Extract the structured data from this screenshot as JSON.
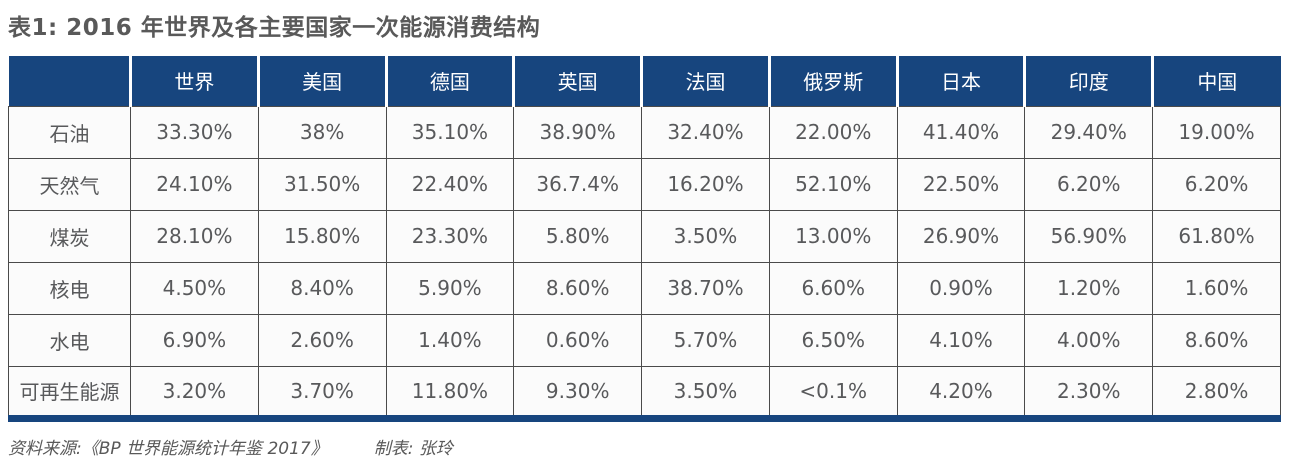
{
  "title": "表1: 2016 年世界及各主要国家一次能源消费结构",
  "table": {
    "columns": [
      "",
      "世界",
      "美国",
      "德国",
      "英国",
      "法国",
      "俄罗斯",
      "日本",
      "印度",
      "中国"
    ],
    "rows": [
      {
        "label": "石油",
        "values": [
          "33.30%",
          "38%",
          "35.10%",
          "38.90%",
          "32.40%",
          "22.00%",
          "41.40%",
          "29.40%",
          "19.00%"
        ]
      },
      {
        "label": "天然气",
        "values": [
          "24.10%",
          "31.50%",
          "22.40%",
          "36.7.4%",
          "16.20%",
          "52.10%",
          "22.50%",
          "6.20%",
          "6.20%"
        ]
      },
      {
        "label": "煤炭",
        "values": [
          "28.10%",
          "15.80%",
          "23.30%",
          "5.80%",
          "3.50%",
          "13.00%",
          "26.90%",
          "56.90%",
          "61.80%"
        ]
      },
      {
        "label": "核电",
        "values": [
          "4.50%",
          "8.40%",
          "5.90%",
          "8.60%",
          "38.70%",
          "6.60%",
          "0.90%",
          "1.20%",
          "1.60%"
        ]
      },
      {
        "label": "水电",
        "values": [
          "6.90%",
          "2.60%",
          "1.40%",
          "0.60%",
          "5.70%",
          "6.50%",
          "4.10%",
          "4.00%",
          "8.60%"
        ]
      },
      {
        "label": "可再生能源",
        "values": [
          "3.20%",
          "3.70%",
          "11.80%",
          "9.30%",
          "3.50%",
          "<0.1%",
          "4.20%",
          "2.30%",
          "2.80%"
        ]
      }
    ]
  },
  "footer": {
    "source": "资料来源:《BP 世界能源统计年鉴 2017》",
    "credit": "制表: 张玲"
  },
  "colors": {
    "header_bg": "#17457e",
    "bottom_bar": "#17457e",
    "body_text": "#58595b",
    "grid_line": "#4a4a4a",
    "title_text": "#595959"
  },
  "chart_data": {
    "type": "table",
    "title": "表1: 2016 年世界及各主要国家一次能源消费结构",
    "categories": [
      "世界",
      "美国",
      "德国",
      "英国",
      "法国",
      "俄罗斯",
      "日本",
      "印度",
      "中国"
    ],
    "series": [
      {
        "name": "石油",
        "values": [
          "33.30%",
          "38%",
          "35.10%",
          "38.90%",
          "32.40%",
          "22.00%",
          "41.40%",
          "29.40%",
          "19.00%"
        ]
      },
      {
        "name": "天然气",
        "values": [
          "24.10%",
          "31.50%",
          "22.40%",
          "36.7.4%",
          "16.20%",
          "52.10%",
          "22.50%",
          "6.20%",
          "6.20%"
        ]
      },
      {
        "name": "煤炭",
        "values": [
          "28.10%",
          "15.80%",
          "23.30%",
          "5.80%",
          "3.50%",
          "13.00%",
          "26.90%",
          "56.90%",
          "61.80%"
        ]
      },
      {
        "name": "核电",
        "values": [
          "4.50%",
          "8.40%",
          "5.90%",
          "8.60%",
          "38.70%",
          "6.60%",
          "0.90%",
          "1.20%",
          "1.60%"
        ]
      },
      {
        "name": "水电",
        "values": [
          "6.90%",
          "2.60%",
          "1.40%",
          "0.60%",
          "5.70%",
          "6.50%",
          "4.10%",
          "4.00%",
          "8.60%"
        ]
      },
      {
        "name": "可再生能源",
        "values": [
          "3.20%",
          "3.70%",
          "11.80%",
          "9.30%",
          "3.50%",
          "<0.1%",
          "4.20%",
          "2.30%",
          "2.80%"
        ]
      }
    ]
  }
}
